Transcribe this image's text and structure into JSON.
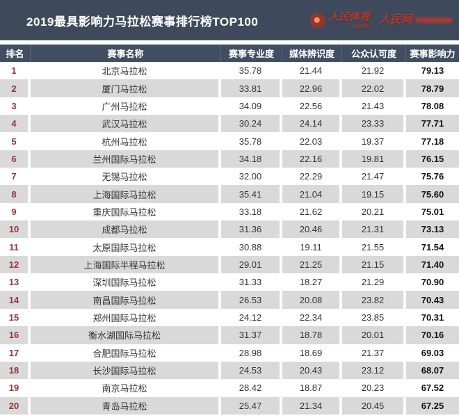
{
  "banner": {
    "logo": {
      "sports_brand": "人民体育",
      "sports_sub": "sports",
      "net_brand": "人民网"
    }
  },
  "colors": {
    "banner_bg": "#3e4a5c",
    "header_bg": "#414e62",
    "stripe_gray": "#d9d9d9",
    "rank_red": "#943634",
    "logo_red": "#b5392c"
  },
  "chart_data": {
    "type": "table",
    "title": "2019最具影响力马拉松赛事排行榜TOP100",
    "columns": [
      "排名",
      "赛事名称",
      "赛事专业度",
      "媒体辨识度",
      "公众认可度",
      "赛事影响力"
    ],
    "rows": [
      [
        "1",
        "北京马拉松",
        "35.78",
        "21.44",
        "21.92",
        "79.13"
      ],
      [
        "2",
        "厦门马拉松",
        "33.81",
        "22.96",
        "22.02",
        "78.79"
      ],
      [
        "3",
        "广州马拉松",
        "34.09",
        "22.56",
        "21.43",
        "78.08"
      ],
      [
        "4",
        "武汉马拉松",
        "30.24",
        "24.14",
        "23.33",
        "77.71"
      ],
      [
        "5",
        "杭州马拉松",
        "35.78",
        "22.03",
        "19.37",
        "77.18"
      ],
      [
        "6",
        "兰州国际马拉松",
        "34.18",
        "22.16",
        "19.81",
        "76.15"
      ],
      [
        "7",
        "无锡马拉松",
        "32.00",
        "22.29",
        "21.47",
        "75.76"
      ],
      [
        "8",
        "上海国际马拉松",
        "35.41",
        "21.04",
        "19.15",
        "75.60"
      ],
      [
        "9",
        "重庆国际马拉松",
        "33.18",
        "21.62",
        "20.21",
        "75.01"
      ],
      [
        "10",
        "成都马拉松",
        "31.36",
        "20.46",
        "21.31",
        "73.13"
      ],
      [
        "11",
        "太原国际马拉松",
        "30.88",
        "19.11",
        "21.55",
        "71.54"
      ],
      [
        "12",
        "上海国际半程马拉松",
        "29.01",
        "21.25",
        "21.15",
        "71.40"
      ],
      [
        "13",
        "深圳国际马拉松",
        "31.33",
        "18.27",
        "21.29",
        "70.90"
      ],
      [
        "14",
        "南昌国际马拉松",
        "26.53",
        "20.08",
        "23.82",
        "70.43"
      ],
      [
        "15",
        "郑州国际马拉松",
        "24.12",
        "22.34",
        "23.85",
        "70.31"
      ],
      [
        "16",
        "衡水湖国际马拉松",
        "31.37",
        "18.78",
        "20.01",
        "70.16"
      ],
      [
        "17",
        "合肥国际马拉松",
        "28.98",
        "18.69",
        "21.37",
        "69.03"
      ],
      [
        "18",
        "长沙国际马拉松",
        "24.53",
        "20.43",
        "23.12",
        "68.07"
      ],
      [
        "19",
        "南京马拉松",
        "28.42",
        "18.87",
        "20.23",
        "67.52"
      ],
      [
        "20",
        "青岛马拉松",
        "25.47",
        "21.34",
        "20.45",
        "67.25"
      ]
    ]
  }
}
